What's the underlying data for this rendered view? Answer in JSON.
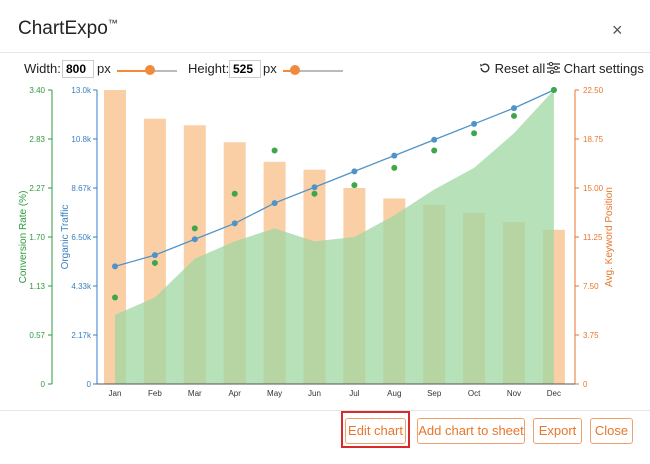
{
  "app": {
    "title": "ChartExpo",
    "trademark": "™",
    "close_icon": "×"
  },
  "controls": {
    "width_label": "Width:",
    "width_value": "800",
    "width_unit": "px",
    "width_slider": 0.55,
    "height_label": "Height:",
    "height_value": "525",
    "height_unit": "px",
    "height_slider": 0.2,
    "reset_label": "Reset all",
    "settings_label": "Chart settings"
  },
  "chart_data": {
    "type": "bar",
    "categories": [
      "Jan",
      "Feb",
      "Mar",
      "Apr",
      "May",
      "Jun",
      "Jul",
      "Aug",
      "Sep",
      "Oct",
      "Nov",
      "Dec"
    ],
    "series": [
      {
        "name": "Avg. Keyword Position",
        "kind": "bar",
        "axis": "right",
        "values": [
          22.5,
          20.3,
          19.8,
          18.5,
          17.0,
          16.4,
          15.0,
          14.2,
          13.7,
          13.1,
          12.4,
          11.8
        ]
      },
      {
        "name": "Conversion Rate (%)",
        "kind": "area",
        "axis": "left-outer",
        "values": [
          0.8,
          1.0,
          1.45,
          1.65,
          1.8,
          1.65,
          1.7,
          1.95,
          2.25,
          2.5,
          2.9,
          3.4
        ]
      },
      {
        "name": "Conversion Rate (%)",
        "kind": "points",
        "axis": "left-outer",
        "values": [
          1.0,
          1.4,
          1.8,
          2.2,
          2.7,
          2.2,
          2.3,
          2.5,
          2.7,
          2.9,
          3.1,
          3.4
        ]
      },
      {
        "name": "Organic Traffic",
        "kind": "line",
        "axis": "left-inner",
        "values": [
          5200,
          5700,
          6400,
          7100,
          8000,
          8700,
          9400,
          10100,
          10800,
          11500,
          12200,
          13000
        ]
      }
    ],
    "axes": {
      "left_outer": {
        "label": "Conversion Rate (%)",
        "ticks": [
          "0",
          "0.57",
          "1.13",
          "1.70",
          "2.27",
          "2.83",
          "3.40"
        ],
        "range": [
          0,
          3.4
        ],
        "color": "#2e9a3e"
      },
      "left_inner": {
        "label": "Organic Traffic",
        "ticks": [
          "0",
          "2.17k",
          "4.33k",
          "6.50k",
          "8.67k",
          "10.8k",
          "13.0k"
        ],
        "range": [
          0,
          13000
        ],
        "color": "#3a7fc0"
      },
      "right": {
        "label": "Avg. Keyword Position",
        "ticks": [
          "0",
          "3.75",
          "7.50",
          "11.25",
          "15.00",
          "18.75",
          "22.50"
        ],
        "range": [
          0,
          22.5
        ],
        "color": "#e8762b"
      }
    },
    "colors": {
      "bar": "#fbcfa6",
      "area": "#9fd7a2",
      "points_green": "#3fa64a",
      "line_blue": "#4f94c8"
    }
  },
  "buttons": {
    "edit": "Edit chart",
    "add": "Add chart to sheet",
    "export": "Export",
    "close": "Close"
  }
}
